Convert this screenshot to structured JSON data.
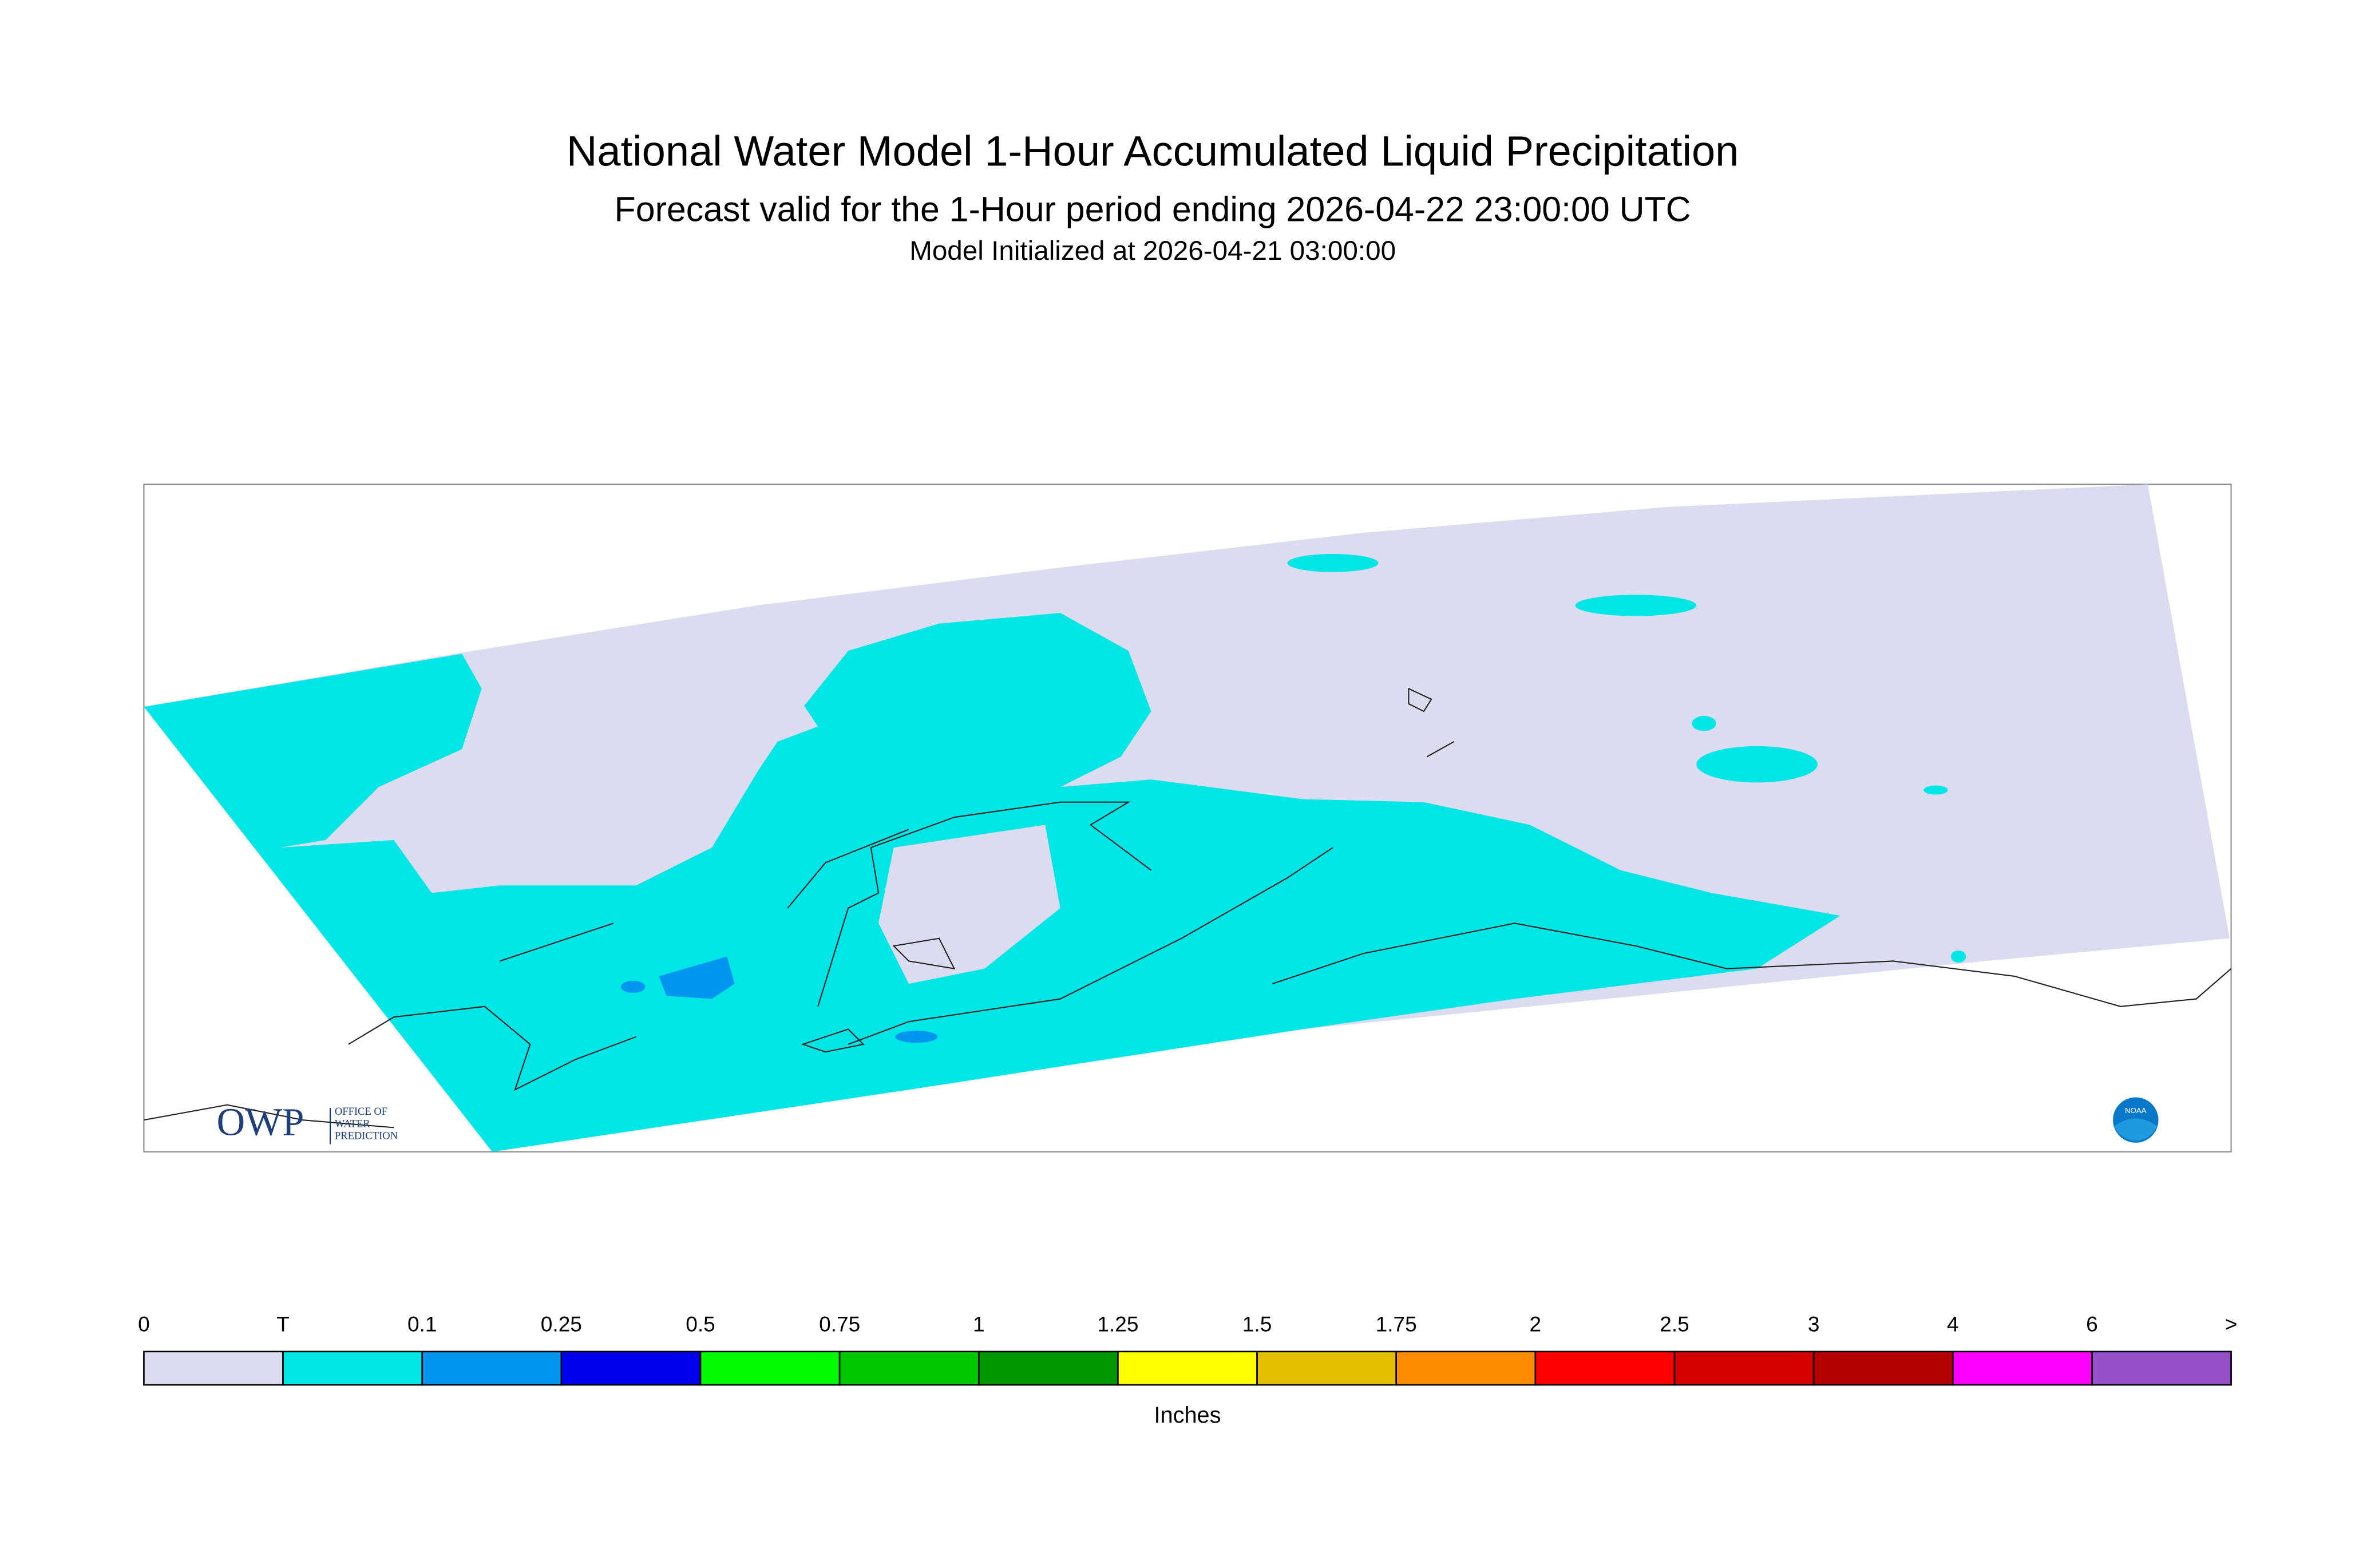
{
  "header": {
    "title": "National Water Model 1-Hour Accumulated Liquid Precipitation",
    "subtitle": "Forecast valid for the 1-Hour period ending 2026-04-22 23:00:00 UTC",
    "initialized": "Model Initialized at 2026-04-21 03:00:00"
  },
  "logo": {
    "acronym": "OWP",
    "line1": "OFFICE OF",
    "line2": "WATER",
    "line3": "PREDICTION",
    "noaa": "NOAA"
  },
  "legend": {
    "labels": [
      0,
      "T",
      0.1,
      0.25,
      0.5,
      0.75,
      1,
      1.25,
      1.5,
      1.75,
      2,
      2.5,
      3,
      4,
      6,
      ">"
    ],
    "colors": [
      "#dcdcf0",
      "#00e6e6",
      "#0096f0",
      "#0000f0",
      "#00fa00",
      "#00c800",
      "#009600",
      "#ffff00",
      "#e6be00",
      "#ff8c00",
      "#ff0000",
      "#d70000",
      "#b40000",
      "#ff00ff",
      "#9650c8"
    ],
    "units": "Inches"
  }
}
